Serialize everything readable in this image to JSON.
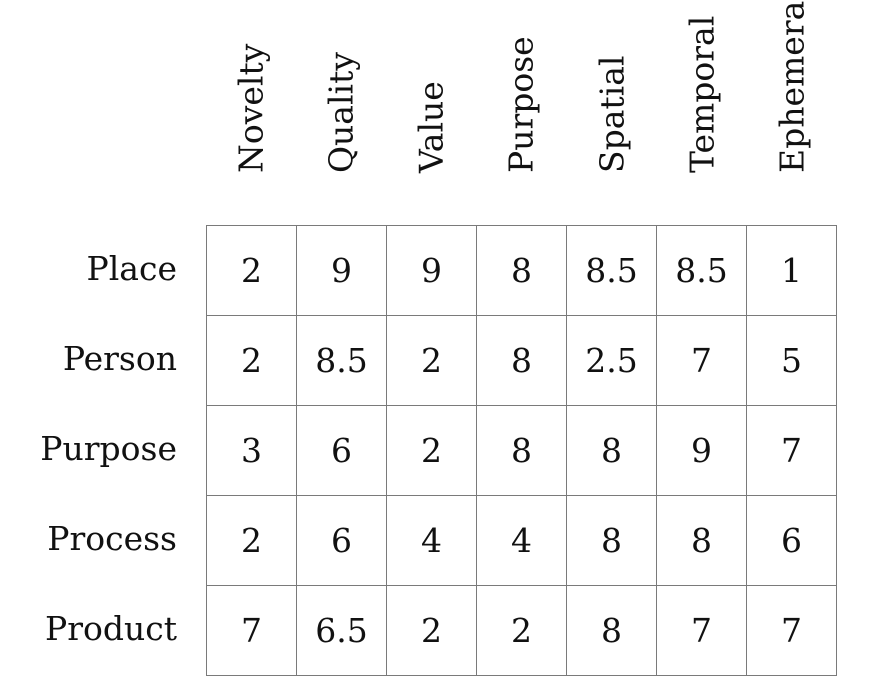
{
  "chart_data": {
    "type": "table",
    "columns": [
      "Novelty",
      "Quality",
      "Value",
      "Purpose",
      "Spatial",
      "Temporal",
      "Ephemeral"
    ],
    "rows": [
      "Place",
      "Person",
      "Purpose",
      "Process",
      "Product"
    ],
    "values": [
      [
        "2",
        "9",
        "9",
        "8",
        "8.5",
        "8.5",
        "1"
      ],
      [
        "2",
        "8.5",
        "2",
        "8",
        "2.5",
        "7",
        "5"
      ],
      [
        "3",
        "6",
        "2",
        "8",
        "8",
        "9",
        "7"
      ],
      [
        "2",
        "6",
        "4",
        "4",
        "8",
        "8",
        "6"
      ],
      [
        "7",
        "6.5",
        "2",
        "2",
        "8",
        "7",
        "7"
      ]
    ]
  }
}
